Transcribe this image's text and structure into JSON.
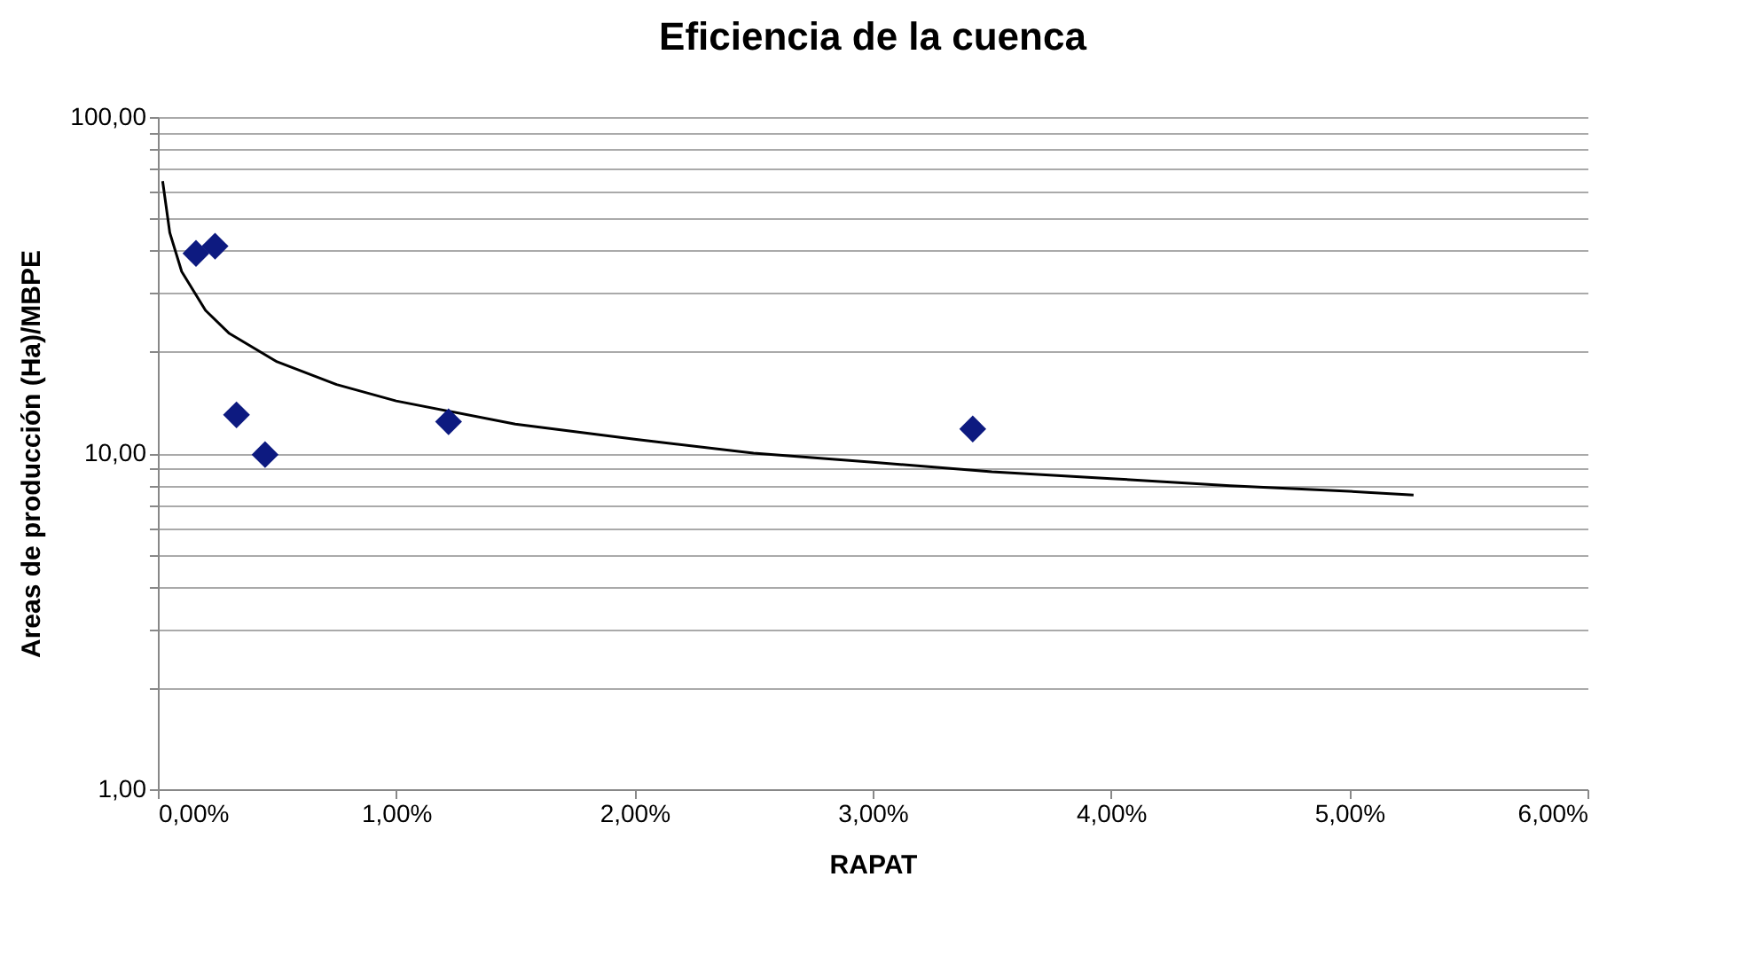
{
  "chart_data": {
    "type": "scatter",
    "title": "Eficiencia de la cuenca",
    "xlabel": "RAPAT",
    "ylabel": "Areas de producción (Ha)/MBPE",
    "log": "y",
    "grid": "y",
    "legend": false,
    "marker": "diamond",
    "xlim": [
      0,
      6
    ],
    "xticks": [
      {
        "value": 0,
        "label": "0,00%"
      },
      {
        "value": 1,
        "label": "1,00%"
      },
      {
        "value": 2,
        "label": "2,00%"
      },
      {
        "value": 3,
        "label": "3,00%"
      },
      {
        "value": 4,
        "label": "4,00%"
      },
      {
        "value": 5,
        "label": "5,00%"
      },
      {
        "value": 6,
        "label": "6,00%"
      }
    ],
    "ylim": [
      1,
      100
    ],
    "yticks": [
      {
        "value": 1,
        "label": "1,00"
      },
      {
        "value": 2,
        "label": null
      },
      {
        "value": 3,
        "label": null
      },
      {
        "value": 4,
        "label": null
      },
      {
        "value": 5,
        "label": null
      },
      {
        "value": 6,
        "label": null
      },
      {
        "value": 7,
        "label": null
      },
      {
        "value": 8,
        "label": null
      },
      {
        "value": 9,
        "label": null
      },
      {
        "value": 10,
        "label": "10,00"
      },
      {
        "value": 20,
        "label": null
      },
      {
        "value": 30,
        "label": null
      },
      {
        "value": 40,
        "label": null
      },
      {
        "value": 50,
        "label": null
      },
      {
        "value": 60,
        "label": null
      },
      {
        "value": 70,
        "label": null
      },
      {
        "value": 80,
        "label": null
      },
      {
        "value": 90,
        "label": null
      },
      {
        "value": 100,
        "label": "100,00"
      }
    ],
    "series": [
      {
        "type": "scatter",
        "color": "#0d1a80",
        "x": [
          0.16,
          0.24,
          0.33,
          0.45,
          1.22,
          3.42
        ],
        "values": [
          39.3,
          41.3,
          13.0,
          9.9,
          12.4,
          11.8
        ]
      },
      {
        "type": "line",
        "color": "#000000",
        "marker": "none",
        "line_style": "solid",
        "x": [
          0.02,
          0.05,
          0.1,
          0.2,
          0.3,
          0.5,
          0.75,
          1,
          1.5,
          2,
          2.5,
          3,
          3.5,
          4,
          4.5,
          5,
          5.27
        ],
        "values": [
          64.5,
          45.3,
          34.7,
          26.6,
          22.7,
          18.7,
          16.0,
          14.3,
          12.2,
          11.0,
          10.0,
          9.4,
          8.8,
          8.4,
          8.0,
          7.7,
          7.5
        ]
      }
    ]
  }
}
